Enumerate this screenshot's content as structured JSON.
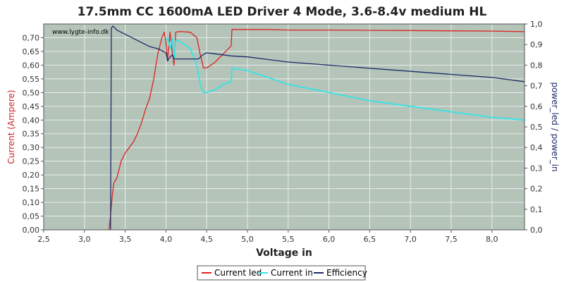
{
  "chart_data": {
    "type": "line",
    "title": "17.5mm CC 1600mA LED Driver 4 Mode, 3.6-8.4v medium HL",
    "xlabel": "Voltage in",
    "ylabel": "Current (Ampere)",
    "y2label": "power_led / power_in",
    "watermark": "www.lygte-info.dk",
    "xlim": [
      2.5,
      8.4
    ],
    "ylim": [
      0,
      0.75
    ],
    "y2lim": [
      0,
      1.0
    ],
    "x_ticks": [
      "2,5",
      "3,0",
      "3,5",
      "4,0",
      "4,5",
      "5,0",
      "5,5",
      "6,0",
      "6,5",
      "7,0",
      "7,5",
      "8,0"
    ],
    "y_ticks": [
      "0,00",
      "0,05",
      "0,10",
      "0,15",
      "0,20",
      "0,25",
      "0,30",
      "0,35",
      "0,40",
      "0,45",
      "0,50",
      "0,55",
      "0,60",
      "0,65",
      "0,70"
    ],
    "y2_ticks": [
      "0,0",
      "0,1",
      "0,2",
      "0,3",
      "0,4",
      "0,5",
      "0,6",
      "0,7",
      "0,8",
      "0,9",
      "1,0"
    ],
    "grid": true,
    "legend_position": "bottom",
    "colors": {
      "plot_bg": "#b4c4b9",
      "grid": "#e8ece9",
      "current_led": "#dd2222",
      "current_in": "#33e5e5",
      "efficiency": "#1c2a66",
      "ylabel": "#cc2222",
      "y2label": "#1c2a66"
    },
    "series": [
      {
        "name": "Current led",
        "axis": "left",
        "x": [
          3.3,
          3.32,
          3.34,
          3.36,
          3.4,
          3.45,
          3.5,
          3.55,
          3.6,
          3.65,
          3.7,
          3.75,
          3.8,
          3.85,
          3.9,
          3.95,
          3.98,
          4.0,
          4.02,
          4.05,
          4.08,
          4.1,
          4.12,
          4.15,
          4.2,
          4.3,
          4.38,
          4.42,
          4.46,
          4.5,
          4.55,
          4.6,
          4.7,
          4.8,
          4.81,
          5.0,
          5.2,
          5.5,
          6.0,
          6.5,
          7.0,
          7.5,
          8.0,
          8.4
        ],
        "y": [
          0.0,
          0.05,
          0.12,
          0.17,
          0.19,
          0.25,
          0.28,
          0.3,
          0.32,
          0.35,
          0.39,
          0.44,
          0.48,
          0.55,
          0.64,
          0.7,
          0.72,
          0.68,
          0.62,
          0.72,
          0.64,
          0.6,
          0.72,
          0.722,
          0.722,
          0.72,
          0.7,
          0.64,
          0.59,
          0.59,
          0.6,
          0.61,
          0.64,
          0.67,
          0.73,
          0.73,
          0.73,
          0.728,
          0.728,
          0.727,
          0.726,
          0.725,
          0.724,
          0.722
        ]
      },
      {
        "name": "Current in",
        "axis": "left",
        "x": [
          4.0,
          4.02,
          4.05,
          4.08,
          4.1,
          4.12,
          4.15,
          4.2,
          4.3,
          4.38,
          4.42,
          4.46,
          4.5,
          4.6,
          4.7,
          4.8,
          4.81,
          5.0,
          5.2,
          5.5,
          6.0,
          6.5,
          7.0,
          7.5,
          8.0,
          8.4
        ],
        "y": [
          0.69,
          0.7,
          0.66,
          0.7,
          0.62,
          0.69,
          0.69,
          0.68,
          0.66,
          0.6,
          0.53,
          0.5,
          0.5,
          0.51,
          0.53,
          0.54,
          0.59,
          0.58,
          0.56,
          0.53,
          0.5,
          0.47,
          0.45,
          0.43,
          0.41,
          0.4
        ]
      },
      {
        "name": "Efficiency",
        "axis": "right",
        "x": [
          3.32,
          3.33,
          3.35,
          3.4,
          3.5,
          3.6,
          3.7,
          3.8,
          3.9,
          4.0,
          4.02,
          4.05,
          4.08,
          4.1,
          4.15,
          4.2,
          4.3,
          4.4,
          4.45,
          4.5,
          4.6,
          4.7,
          4.8,
          5.0,
          5.2,
          5.5,
          6.0,
          6.5,
          7.0,
          7.5,
          8.0,
          8.4
        ],
        "y": [
          0.0,
          0.98,
          0.99,
          0.97,
          0.95,
          0.93,
          0.91,
          0.89,
          0.88,
          0.86,
          0.82,
          0.84,
          0.85,
          0.83,
          0.83,
          0.83,
          0.83,
          0.83,
          0.85,
          0.86,
          0.855,
          0.85,
          0.845,
          0.84,
          0.83,
          0.815,
          0.8,
          0.785,
          0.77,
          0.755,
          0.74,
          0.72
        ]
      }
    ]
  }
}
